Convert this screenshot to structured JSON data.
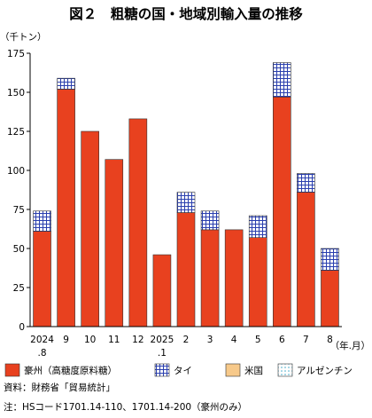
{
  "chart_data": {
    "type": "bar",
    "stacked": true,
    "title": "図２　粗糖の国・地域別輸入量の推移",
    "y_unit": "（千トン）",
    "x_unit": "（年.月）",
    "ylim": [
      0,
      175
    ],
    "yticks": [
      "0",
      "25",
      "50",
      "75",
      "100",
      "125",
      "150",
      "175"
    ],
    "categories": [
      {
        "line1": "2024",
        "line2": ".8"
      },
      {
        "line1": "9",
        "line2": ""
      },
      {
        "line1": "10",
        "line2": ""
      },
      {
        "line1": "11",
        "line2": ""
      },
      {
        "line1": "12",
        "line2": ""
      },
      {
        "line1": "2025",
        "line2": ".1"
      },
      {
        "line1": "2",
        "line2": ""
      },
      {
        "line1": "3",
        "line2": ""
      },
      {
        "line1": "4",
        "line2": ""
      },
      {
        "line1": "5",
        "line2": ""
      },
      {
        "line1": "6",
        "line2": ""
      },
      {
        "line1": "7",
        "line2": ""
      },
      {
        "line1": "8",
        "line2": ""
      }
    ],
    "series": [
      {
        "name": "豪州（高糖度原料糖）",
        "style": "solid",
        "color": "#e8411f",
        "values": [
          61,
          152,
          125,
          107,
          133,
          46,
          73,
          62,
          62,
          57,
          147,
          86,
          36
        ]
      },
      {
        "name": "タイ",
        "style": "grid",
        "color": "#2a3fae",
        "values": [
          13,
          7,
          0,
          0,
          0,
          0,
          13,
          12,
          0,
          14,
          22,
          12,
          14
        ]
      },
      {
        "name": "米国",
        "style": "solid",
        "color": "#f7c98a",
        "values": [
          0,
          0,
          0,
          0,
          0,
          0,
          0,
          0,
          0,
          0,
          0,
          0,
          0
        ]
      },
      {
        "name": "アルゼンチン",
        "style": "dots",
        "color": "#3fa9c9",
        "values": [
          0,
          0,
          0,
          0,
          0,
          0,
          0,
          0,
          0,
          0,
          0,
          0,
          0
        ]
      }
    ],
    "legend_position": "bottom",
    "grid": false
  },
  "notes": {
    "source": "資料：財務省「貿易統計」",
    "note": "注：HSコード1701.14-110、1701.14-200（豪州のみ）"
  }
}
